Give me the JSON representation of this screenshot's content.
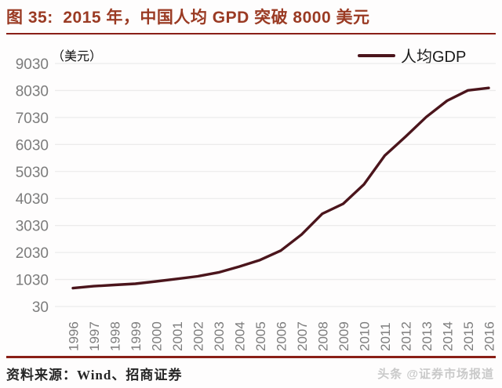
{
  "header": {
    "title": "图 35:  2015 年，中国人均 GPD 突破 8000 美元"
  },
  "chart_data": {
    "type": "line",
    "title": "图 35:  2015 年，中国人均 GPD 突破 8000 美元",
    "unit_label": "（美元）",
    "legend": [
      {
        "label": "人均GDP"
      }
    ],
    "legend_position": "top-right",
    "grid": true,
    "x": [
      1996,
      1997,
      1998,
      1999,
      2000,
      2001,
      2002,
      2003,
      2004,
      2005,
      2006,
      2007,
      2008,
      2009,
      2010,
      2011,
      2012,
      2013,
      2014,
      2015,
      2016
    ],
    "series": [
      {
        "name": "人均GDP",
        "values": [
          709,
          782,
          829,
          873,
          959,
          1053,
          1149,
          1289,
          1509,
          1753,
          2099,
          2694,
          3468,
          3832,
          4550,
          5618,
          6317,
          7051,
          7651,
          8033,
          8123
        ]
      }
    ],
    "ylim": [
      30,
      9030
    ],
    "yticks": [
      9030,
      8030,
      7030,
      6030,
      5030,
      4030,
      3030,
      2030,
      1030,
      30
    ],
    "xlabel": "",
    "ylabel": "（美元）"
  },
  "footer": {
    "source": "资料来源：Wind、招商证券",
    "watermark": "头条 @证券市场报道"
  },
  "colors": {
    "line": "#4b151c",
    "title": "#9a3a23",
    "rule": "#8a1f17",
    "grid": "#ececec",
    "tick_text": "#7c7c7c",
    "watermark": "#c9c9c9"
  },
  "icons": {
    "legend_line_swatch": "legend-line-swatch"
  }
}
